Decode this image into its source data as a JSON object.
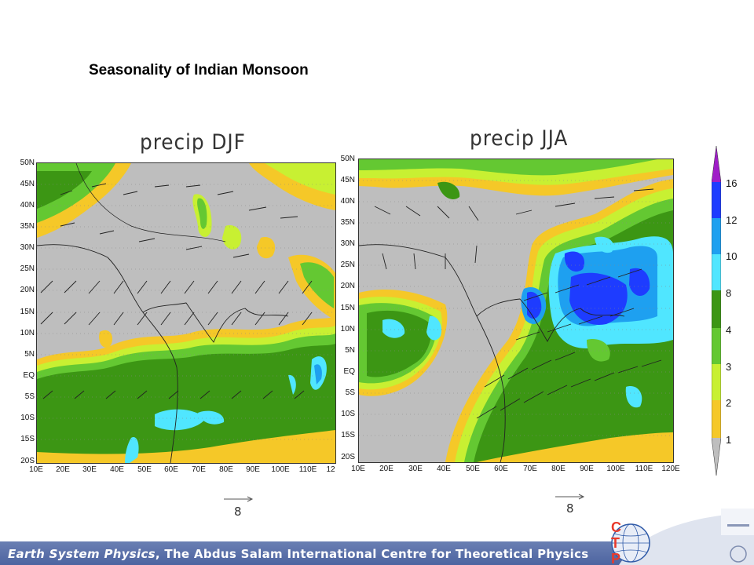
{
  "slide": {
    "title": "Seasonality of Indian Monsoon"
  },
  "maps": [
    {
      "id": "djf",
      "title": "precip DJF",
      "lat_labels": [
        "50N",
        "45N",
        "40N",
        "35N",
        "30N",
        "25N",
        "20N",
        "15N",
        "10N",
        "5N",
        "EQ",
        "5S",
        "10S",
        "15S",
        "20S"
      ],
      "lon_labels": [
        "10E",
        "20E",
        "30E",
        "40E",
        "50E",
        "60E",
        "70E",
        "80E",
        "90E",
        "100E",
        "110E",
        "12"
      ],
      "reference_vector_label": "8"
    },
    {
      "id": "jja",
      "title": "precip JJA",
      "lat_labels": [
        "50N",
        "45N",
        "40N",
        "35N",
        "30N",
        "25N",
        "20N",
        "15N",
        "10N",
        "5N",
        "EQ",
        "5S",
        "10S",
        "15S",
        "20S"
      ],
      "lon_labels": [
        "10E",
        "20E",
        "30E",
        "40E",
        "50E",
        "60E",
        "70E",
        "80E",
        "90E",
        "100E",
        "110E",
        "120E"
      ],
      "reference_vector_label": "8"
    }
  ],
  "colorbar": {
    "labels": [
      "16",
      "12",
      "10",
      "8",
      "4",
      "3",
      "2",
      "1"
    ],
    "colors": {
      "above16": "#a01ec8",
      "c12_16": "#1e3cff",
      "c10_12": "#1ea0f0",
      "c8_10": "#50e6ff",
      "c4_8": "#3c9614",
      "c3_4": "#64c832",
      "c2_3": "#c8f032",
      "c1_2": "#f5c828",
      "below1": "#bebebe"
    }
  },
  "footer": {
    "italic_part": "Earth System Physics",
    "rest": ", The Abdus Salam International Centre for Theoretical Physics"
  },
  "logo": {
    "letters": [
      "C",
      "T",
      "P"
    ]
  }
}
